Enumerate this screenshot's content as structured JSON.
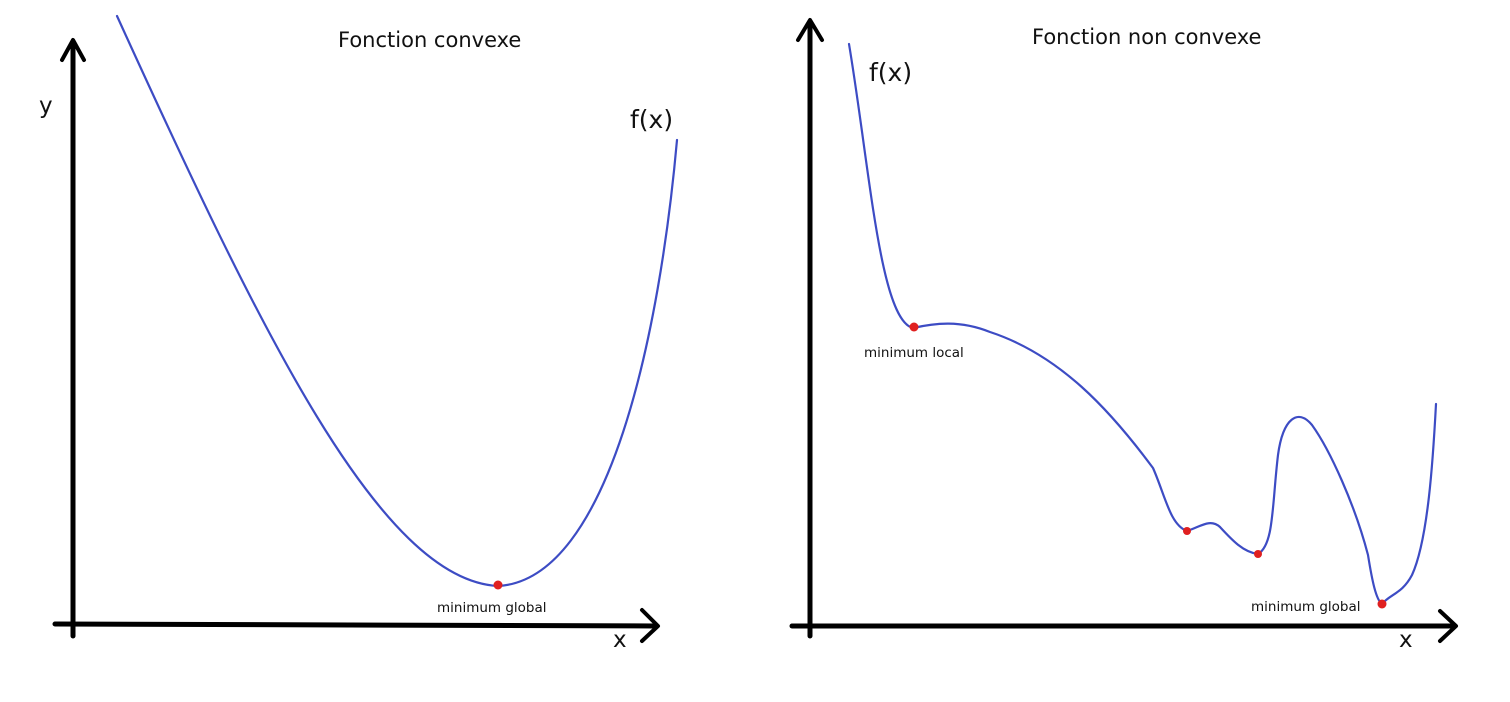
{
  "colors": {
    "curve": "#3d4cc4",
    "point": "#e02020",
    "axis": "#000000",
    "text": "#111111"
  },
  "left_panel": {
    "title": "Fonction convexe",
    "function_label": "f(x)",
    "y_label": "y",
    "x_label": "x",
    "points": [
      {
        "label": "minimum global"
      }
    ]
  },
  "right_panel": {
    "title": "Fonction non convexe",
    "function_label": "f(x)",
    "x_label": "x",
    "points": [
      {
        "label": "minimum local"
      },
      {
        "label": ""
      },
      {
        "label": ""
      },
      {
        "label": "minimum global"
      }
    ]
  }
}
